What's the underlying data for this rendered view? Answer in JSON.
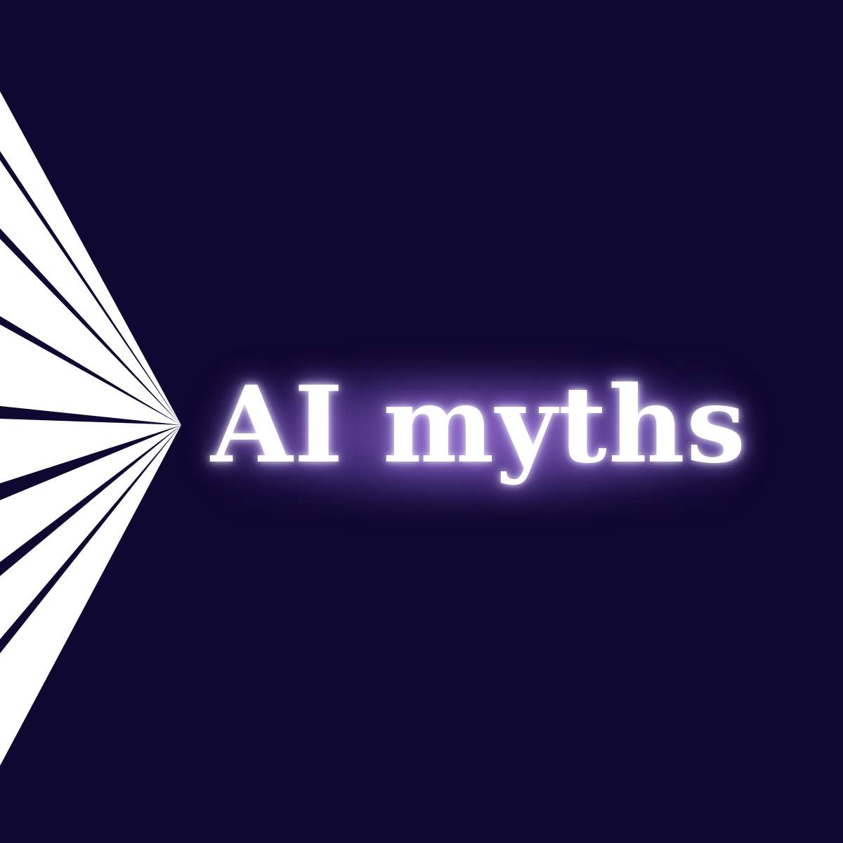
{
  "title": {
    "text": "AI myths"
  },
  "colors": {
    "background": "#0f0830",
    "rays": "#ffffff",
    "glow": "#9a74d0",
    "text": "#ffffff"
  },
  "decoration": {
    "fan_icon": "light-ray-fan"
  }
}
